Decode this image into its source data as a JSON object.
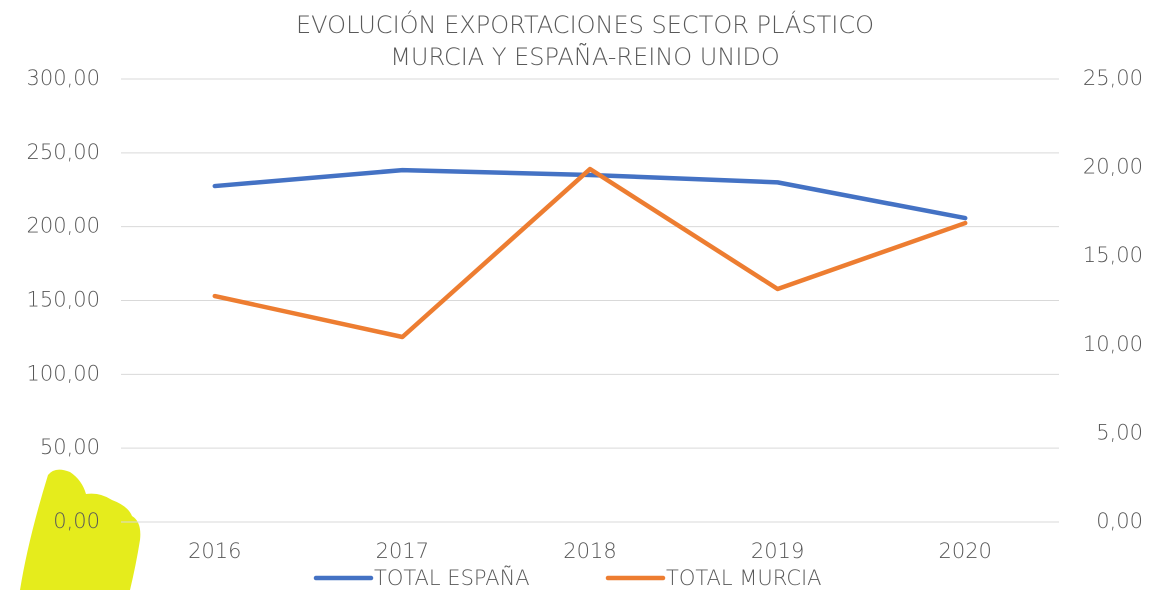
{
  "chart_data": {
    "type": "line",
    "title": [
      "EVOLUCIÓN EXPORTACIONES SECTOR PLÁSTICO",
      "MURCIA Y ESPAÑA-REINO UNIDO"
    ],
    "categories": [
      "2016",
      "2017",
      "2018",
      "2019",
      "2020"
    ],
    "series": [
      {
        "name": "TOTAL ESPAÑA",
        "color": "#4472c4",
        "values": [
          227.5,
          238.3,
          235.0,
          230.0,
          205.8
        ]
      },
      {
        "name": "TOTAL MURCIA",
        "color": "#ed7d31",
        "axis": "y2",
        "values": [
          12.75,
          10.44,
          19.92,
          13.15,
          16.87
        ]
      }
    ],
    "ylim": [
      0,
      300
    ],
    "yticks": [
      {
        "value": 0,
        "label": "0,00"
      },
      {
        "value": 50,
        "label": "50,00"
      },
      {
        "value": 100,
        "label": "100,00"
      },
      {
        "value": 150,
        "label": "150,00"
      },
      {
        "value": 200,
        "label": "200,00"
      },
      {
        "value": 250,
        "label": "250,00"
      },
      {
        "value": 300,
        "label": "300,00"
      }
    ],
    "y2lim": [
      0,
      25
    ],
    "y2ticks": [
      {
        "value": 0,
        "label": "0,00"
      },
      {
        "value": 5,
        "label": "5,00"
      },
      {
        "value": 10,
        "label": "10,00"
      },
      {
        "value": 15,
        "label": "15,00"
      },
      {
        "value": 20,
        "label": "20,00"
      },
      {
        "value": 25,
        "label": "25,00"
      }
    ],
    "grid": true,
    "legend": "bottom"
  }
}
